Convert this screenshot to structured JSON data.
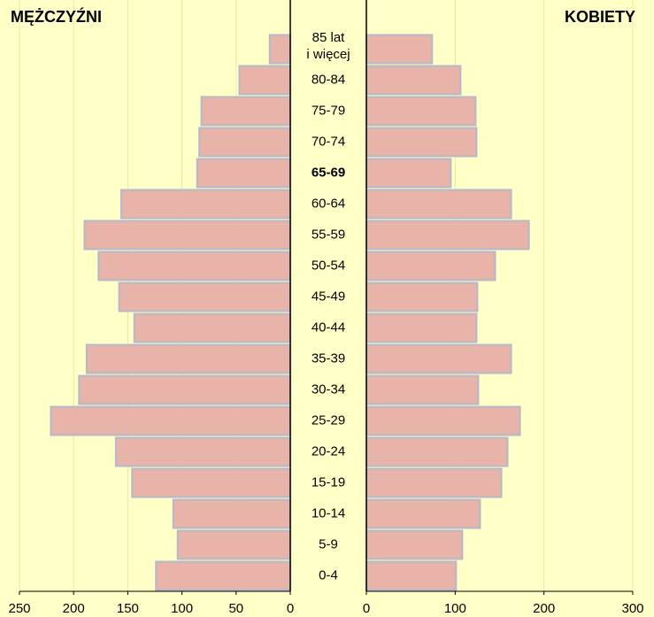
{
  "chart_data": {
    "type": "pyramid",
    "categories": [
      "85 lat\ni więcej",
      "80-84",
      "75-79",
      "70-74",
      "65-69",
      "60-64",
      "55-59",
      "50-54",
      "45-49",
      "40-44",
      "35-39",
      "30-34",
      "25-29",
      "20-24",
      "15-19",
      "10-14",
      "5-9",
      "0-4"
    ],
    "highlighted_category": 4,
    "grid": true,
    "series": [
      {
        "name": "MĘŻCZYŹNI",
        "side": "left",
        "color": "#e8b4aa",
        "values": [
          19,
          47,
          82,
          84,
          86,
          156,
          190,
          177,
          158,
          144,
          188,
          195,
          221,
          161,
          146,
          108,
          104,
          124
        ],
        "xlim": [
          250,
          0
        ],
        "xticks": [
          250,
          200,
          150,
          100,
          50,
          0
        ]
      },
      {
        "name": "KOBIETY",
        "side": "right",
        "color": "#e8b4aa",
        "values": [
          74,
          106,
          123,
          124,
          95,
          163,
          183,
          145,
          125,
          124,
          163,
          126,
          173,
          159,
          152,
          128,
          108,
          101
        ],
        "xlim": [
          0,
          300
        ],
        "xticks": [
          0,
          100,
          200,
          300
        ]
      }
    ]
  }
}
